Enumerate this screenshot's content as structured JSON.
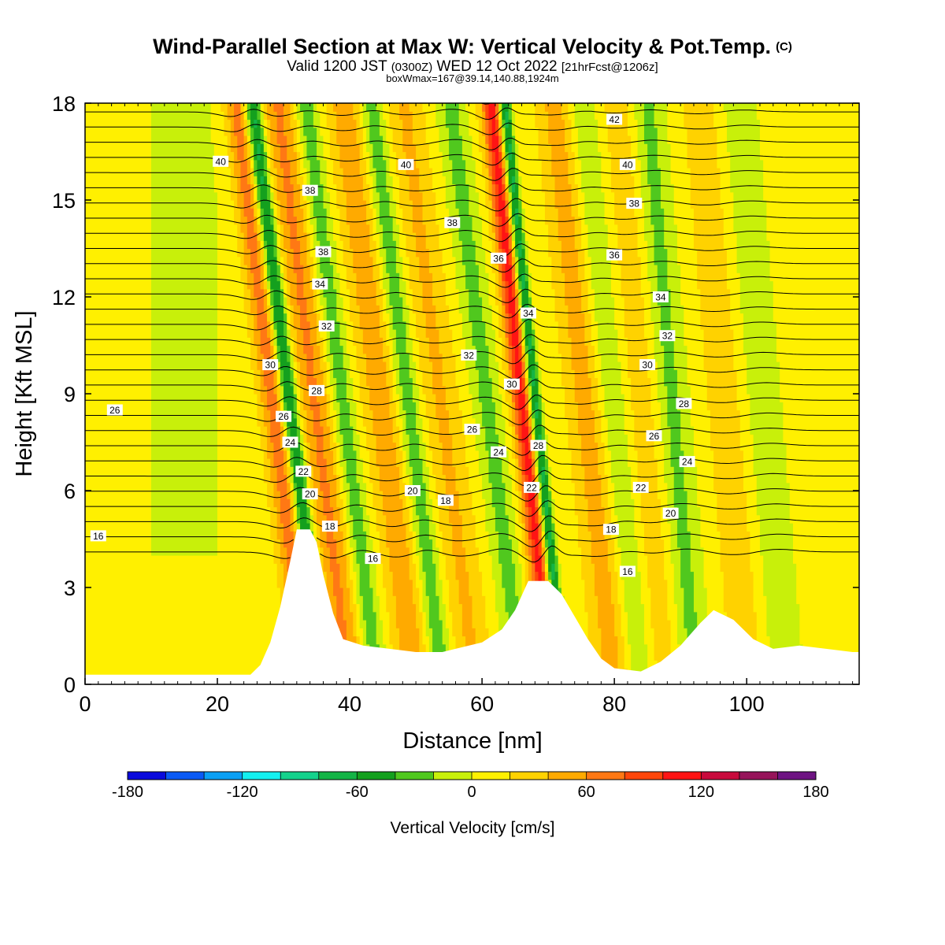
{
  "header": {
    "title": "Wind-Parallel Section at Max W: Vertical Velocity & Pot.Temp.",
    "copyright": "(C)",
    "valid_prefix": "Valid 1200 JST",
    "valid_utc": "(0300Z)",
    "valid_date": "WED 12 Oct 2022",
    "forecast": "[21hrFcst@1206z]",
    "box_info": "boxWmax=167@39.14,140.88,1924m"
  },
  "chart_data": {
    "type": "heatmap",
    "xlabel": "Distance [nm]",
    "ylabel": "Height [Kft MSL]",
    "xlim": [
      0,
      117
    ],
    "ylim": [
      0,
      18
    ],
    "x_ticks": [
      "0",
      "20",
      "40",
      "60",
      "80",
      "100"
    ],
    "y_ticks": [
      "0",
      "3",
      "6",
      "9",
      "12",
      "15",
      "18"
    ],
    "colorbar": {
      "label": "Vertical Velocity [cm/s]",
      "range": [
        -180,
        180
      ],
      "step": 20,
      "tick_labels": [
        "-180",
        "-120",
        "-60",
        "0",
        "60",
        "120",
        "180"
      ],
      "colors": [
        "#0a0adc",
        "#0a5af5",
        "#0aa0f5",
        "#14f0f0",
        "#14d28c",
        "#14b446",
        "#14a01e",
        "#50c81e",
        "#c8f00a",
        "#fff000",
        "#ffd200",
        "#ffaa00",
        "#ff7814",
        "#ff460a",
        "#ff1414",
        "#c80a3c",
        "#96145a",
        "#6e1482"
      ]
    },
    "theta_contour_labels": [
      {
        "label": "16",
        "x": 2,
        "z": 4.6
      },
      {
        "label": "26",
        "x": 4.5,
        "z": 8.5
      },
      {
        "label": "40",
        "x": 20.5,
        "z": 16.2
      },
      {
        "label": "30",
        "x": 28,
        "z": 9.9
      },
      {
        "label": "26",
        "x": 30,
        "z": 8.3
      },
      {
        "label": "24",
        "x": 31,
        "z": 7.5
      },
      {
        "label": "22",
        "x": 33,
        "z": 6.6
      },
      {
        "label": "20",
        "x": 34,
        "z": 5.9
      },
      {
        "label": "18",
        "x": 37,
        "z": 4.9
      },
      {
        "label": "38",
        "x": 34,
        "z": 15.3
      },
      {
        "label": "38",
        "x": 36,
        "z": 13.4
      },
      {
        "label": "34",
        "x": 35.5,
        "z": 12.4
      },
      {
        "label": "32",
        "x": 36.5,
        "z": 11.1
      },
      {
        "label": "28",
        "x": 35,
        "z": 9.1
      },
      {
        "label": "16",
        "x": 43.5,
        "z": 3.9
      },
      {
        "label": "40",
        "x": 48.5,
        "z": 16.1
      },
      {
        "label": "20",
        "x": 49.5,
        "z": 6.0
      },
      {
        "label": "18",
        "x": 54.5,
        "z": 5.7
      },
      {
        "label": "38",
        "x": 55.5,
        "z": 14.3
      },
      {
        "label": "32",
        "x": 58,
        "z": 10.2
      },
      {
        "label": "26",
        "x": 58.5,
        "z": 7.9
      },
      {
        "label": "24",
        "x": 62.5,
        "z": 7.2
      },
      {
        "label": "36",
        "x": 62.5,
        "z": 13.2
      },
      {
        "label": "30",
        "x": 64.5,
        "z": 9.3
      },
      {
        "label": "34",
        "x": 67,
        "z": 11.5
      },
      {
        "label": "28",
        "x": 68.5,
        "z": 7.4
      },
      {
        "label": "22",
        "x": 67.5,
        "z": 6.1
      },
      {
        "label": "42",
        "x": 80,
        "z": 17.5
      },
      {
        "label": "40",
        "x": 82,
        "z": 16.1
      },
      {
        "label": "38",
        "x": 83,
        "z": 14.9
      },
      {
        "label": "36",
        "x": 80,
        "z": 13.3
      },
      {
        "label": "34",
        "x": 87,
        "z": 12.0
      },
      {
        "label": "32",
        "x": 88,
        "z": 10.8
      },
      {
        "label": "30",
        "x": 85,
        "z": 9.9
      },
      {
        "label": "28",
        "x": 90.5,
        "z": 8.7
      },
      {
        "label": "26",
        "x": 86,
        "z": 7.7
      },
      {
        "label": "24",
        "x": 91,
        "z": 6.9
      },
      {
        "label": "22",
        "x": 84,
        "z": 6.1
      },
      {
        "label": "20",
        "x": 88.5,
        "z": 5.3
      },
      {
        "label": "18",
        "x": 79.5,
        "z": 4.8
      },
      {
        "label": "16",
        "x": 82,
        "z": 3.5
      }
    ]
  }
}
